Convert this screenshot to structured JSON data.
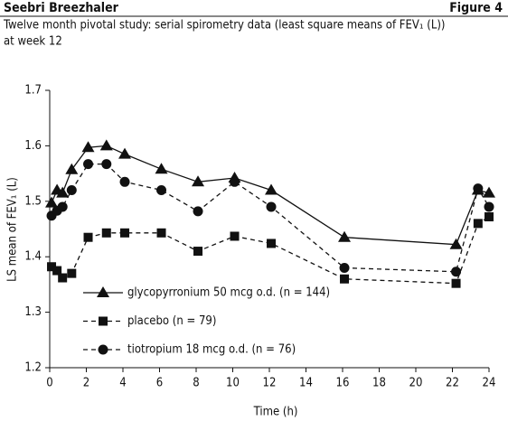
{
  "chart_data": {
    "type": "line",
    "header": "Seebri Breezhaler",
    "figure_label": "Figure 4",
    "title": "Twelve month pivotal study: serial spirometry data (least square means of FEV₁ (L))",
    "subtitle": "at week 12",
    "x_label": "Time (h)",
    "y_label": "LS mean of FEV₁ (L)",
    "x": [
      0.1,
      0.4,
      0.7,
      1.2,
      2.1,
      3.1,
      4.1,
      6.1,
      8.1,
      10.1,
      12.1,
      16.1,
      22.2,
      23.4,
      24
    ],
    "series": [
      {
        "name": "glycopyrronium 50 mcg o.d. (n = 144)",
        "color": "#111111",
        "dash": "solid",
        "marker": "triangle",
        "values": [
          1.497,
          1.52,
          1.515,
          1.557,
          1.597,
          1.6,
          1.585,
          1.558,
          1.535,
          1.542,
          1.52,
          1.435,
          1.422,
          1.52,
          1.515
        ]
      },
      {
        "name": "placebo (n = 79)",
        "color": "#111111",
        "dash": "dashed",
        "marker": "square",
        "values": [
          1.382,
          1.375,
          1.362,
          1.37,
          1.435,
          1.443,
          1.443,
          1.443,
          1.41,
          1.437,
          1.424,
          1.36,
          1.352,
          1.46,
          1.472
        ]
      },
      {
        "name": "tiotropium 18 mcg o.d. (n = 76)",
        "color": "#111111",
        "dash": "dashed",
        "marker": "circle",
        "values": [
          1.474,
          1.483,
          1.49,
          1.52,
          1.567,
          1.567,
          1.535,
          1.52,
          1.482,
          1.535,
          1.49,
          1.38,
          1.373,
          1.523,
          1.49
        ]
      }
    ],
    "xlim": [
      0,
      24
    ],
    "xticks": [
      0,
      2,
      4,
      6,
      8,
      10,
      12,
      14,
      16,
      18,
      20,
      22,
      24
    ],
    "ylim": [
      1.2,
      1.7
    ],
    "yticks": [
      1.2,
      1.3,
      1.4,
      1.5,
      1.6,
      1.7
    ],
    "grid": false
  }
}
